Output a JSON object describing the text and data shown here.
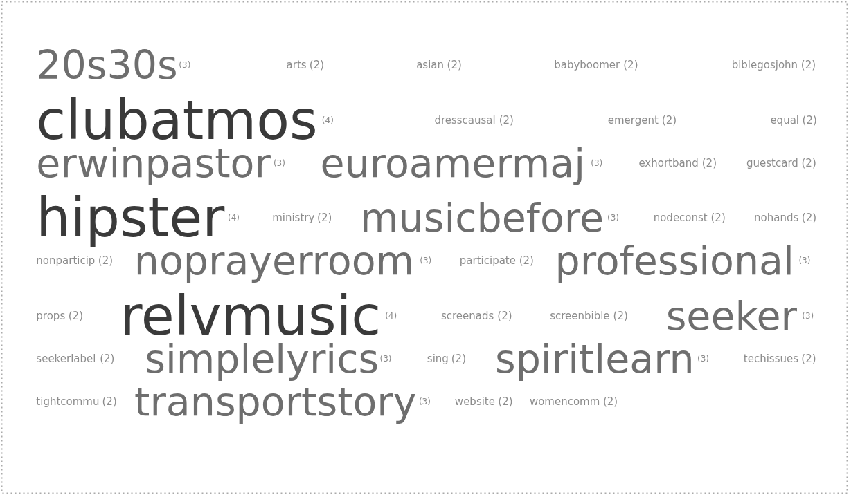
{
  "chart_data": {
    "type": "other",
    "value_labels": [
      "(3)",
      "(2)",
      "(2)",
      "(2)",
      "(2)",
      "(4)",
      "(2)",
      "(2)",
      "(2)",
      "(3)",
      "(3)",
      "(2)",
      "(2)",
      "(4)",
      "(2)",
      "(3)",
      "(2)",
      "(2)",
      "(2)",
      "(3)",
      "(2)",
      "(3)",
      "(2)",
      "(4)",
      "(2)",
      "(2)",
      "(3)",
      "(2)",
      "(3)",
      "(2)",
      "(3)",
      "(2)",
      "(2)",
      "(3)",
      "(2)",
      "(2)"
    ],
    "categories": [
      "20s30s",
      "arts",
      "asian",
      "babyboomer",
      "biblegosjohn",
      "clubatmos",
      "dresscausal",
      "emergent",
      "equal",
      "erwinpastor",
      "euroamermaj",
      "exhortband",
      "guestcard",
      "hipster",
      "ministry",
      "musicbefore",
      "nodeconst",
      "nohands",
      "nonparticip",
      "noprayerroom",
      "participate",
      "professional",
      "props",
      "relvmusic",
      "screenads",
      "screenbible",
      "seeker",
      "seekerlabel",
      "simplelyrics",
      "sing",
      "spiritlearn",
      "techissues",
      "tightcommu",
      "transportstory",
      "website",
      "womencomm"
    ],
    "values": [
      3,
      2,
      2,
      2,
      2,
      4,
      2,
      2,
      2,
      3,
      3,
      2,
      2,
      4,
      2,
      3,
      2,
      2,
      2,
      3,
      2,
      3,
      2,
      4,
      2,
      2,
      3,
      2,
      3,
      2,
      3,
      2,
      2,
      3,
      2,
      2
    ],
    "colors": [
      "#6e6e6e",
      "#8c8c8c",
      "#8c8c8c",
      "#8c8c8c",
      "#8c8c8c",
      "#3a3a3a",
      "#8c8c8c",
      "#8c8c8c",
      "#8c8c8c",
      "#6e6e6e",
      "#6e6e6e",
      "#8c8c8c",
      "#8c8c8c",
      "#3a3a3a",
      "#8c8c8c",
      "#6e6e6e",
      "#8c8c8c",
      "#8c8c8c",
      "#8c8c8c",
      "#6e6e6e",
      "#8c8c8c",
      "#6e6e6e",
      "#8c8c8c",
      "#3a3a3a",
      "#8c8c8c",
      "#8c8c8c",
      "#6e6e6e",
      "#8c8c8c",
      "#6e6e6e",
      "#8c8c8c",
      "#6e6e6e",
      "#8c8c8c",
      "#8c8c8c",
      "#6e6e6e",
      "#8c8c8c",
      "#8c8c8c"
    ]
  }
}
